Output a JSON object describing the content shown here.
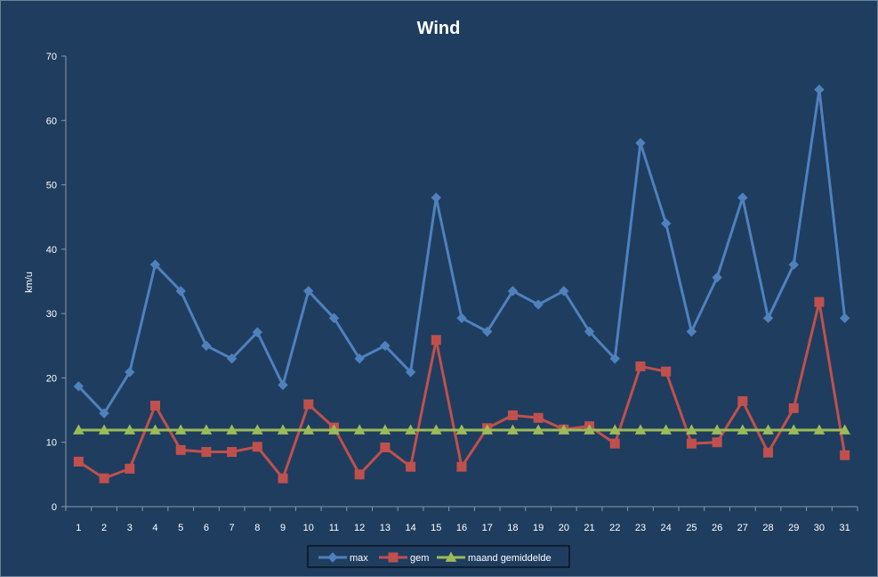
{
  "chart_data": {
    "type": "line",
    "title": "Wind",
    "xlabel": "",
    "ylabel": "km/u",
    "ylim": [
      0,
      70
    ],
    "yticks": [
      0,
      10,
      20,
      30,
      40,
      50,
      60,
      70
    ],
    "grid": false,
    "legend_position": "bottom",
    "categories": [
      "1",
      "2",
      "3",
      "4",
      "5",
      "6",
      "7",
      "8",
      "9",
      "10",
      "11",
      "12",
      "13",
      "14",
      "15",
      "16",
      "17",
      "18",
      "19",
      "20",
      "21",
      "22",
      "23",
      "24",
      "25",
      "26",
      "27",
      "28",
      "29",
      "30",
      "31"
    ],
    "series": [
      {
        "name": "max",
        "color": "#4f81bd",
        "marker": "diamond",
        "values": [
          18.7,
          14.5,
          20.9,
          37.6,
          33.5,
          25.0,
          23.0,
          27.1,
          18.9,
          33.5,
          29.3,
          23.0,
          25.0,
          20.9,
          48.0,
          29.3,
          27.2,
          33.5,
          31.4,
          33.5,
          27.2,
          23.0,
          56.5,
          44.0,
          27.2,
          35.6,
          48.0,
          29.3,
          37.6,
          64.8,
          29.3
        ]
      },
      {
        "name": "gem",
        "color": "#c0504d",
        "marker": "square",
        "values": [
          7.0,
          4.4,
          5.9,
          15.7,
          8.8,
          8.5,
          8.5,
          9.3,
          4.4,
          15.9,
          12.3,
          5.0,
          9.2,
          6.2,
          25.9,
          6.2,
          12.2,
          14.2,
          13.8,
          12.0,
          12.5,
          9.8,
          21.8,
          21.0,
          9.8,
          10.0,
          16.4,
          8.4,
          15.3,
          31.8,
          8.0
        ]
      },
      {
        "name": "maand gemiddelde",
        "color": "#9bbb59",
        "marker": "triangle",
        "values": [
          11.9,
          11.9,
          11.9,
          11.9,
          11.9,
          11.9,
          11.9,
          11.9,
          11.9,
          11.9,
          11.9,
          11.9,
          11.9,
          11.9,
          11.9,
          11.9,
          11.9,
          11.9,
          11.9,
          11.9,
          11.9,
          11.9,
          11.9,
          11.9,
          11.9,
          11.9,
          11.9,
          11.9,
          11.9,
          11.9,
          11.9
        ]
      }
    ]
  }
}
